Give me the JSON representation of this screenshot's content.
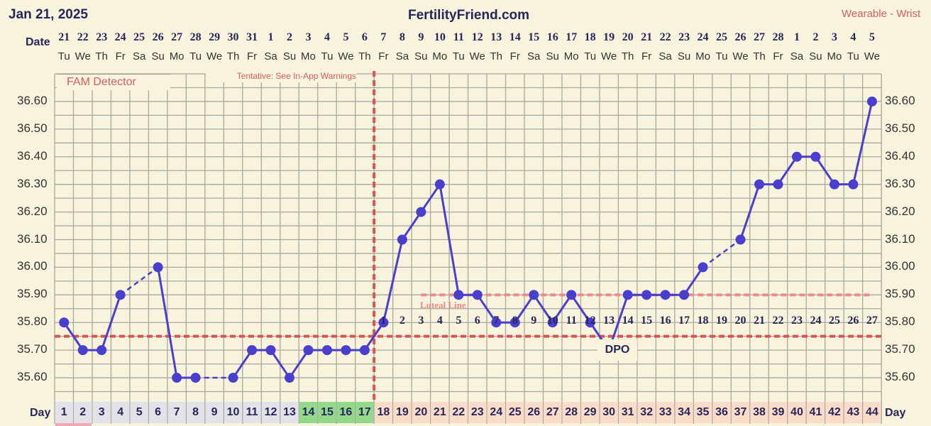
{
  "header": {
    "date": "Jan 21, 2025",
    "site": "FertilityFriend.com",
    "source": "Wearable - Wrist"
  },
  "labels": {
    "date_row": "Date",
    "day_row": "Day",
    "fam": "FAM Detector",
    "tentative": "Tentative: See In-App Warnings",
    "luteal": "Luteal Line",
    "dpo": "DPO"
  },
  "colors": {
    "background": "#f8f3dc",
    "line": "#4a3fcc",
    "coverline": "#d9534f",
    "luteal": "#ef8a8a",
    "fertile": "#93d98a",
    "luteal_phase": "#fbdcc8",
    "follicular": "#e2e2e8"
  },
  "chart_data": {
    "type": "line",
    "dates": [
      "21",
      "22",
      "23",
      "24",
      "25",
      "26",
      "27",
      "28",
      "29",
      "30",
      "31",
      "1",
      "2",
      "3",
      "4",
      "5",
      "6",
      "7",
      "8",
      "9",
      "10",
      "11",
      "12",
      "13",
      "14",
      "15",
      "16",
      "17",
      "18",
      "19",
      "20",
      "21",
      "22",
      "23",
      "24",
      "25",
      "26",
      "27",
      "28",
      "1",
      "2",
      "3",
      "4",
      "5"
    ],
    "weekdays": [
      "Tu",
      "We",
      "Th",
      "Fr",
      "Sa",
      "Su",
      "Mo",
      "Tu",
      "We",
      "Th",
      "Fr",
      "Sa",
      "Su",
      "Mo",
      "Tu",
      "We",
      "Th",
      "Fr",
      "Sa",
      "Su",
      "Mo",
      "Tu",
      "We",
      "Th",
      "Fr",
      "Sa",
      "Su",
      "Mo",
      "Tu",
      "We",
      "Th",
      "Fr",
      "Sa",
      "Su",
      "Mo",
      "Tu",
      "We",
      "Th",
      "Fr",
      "Sa",
      "Su",
      "Mo",
      "Tu",
      "We"
    ],
    "days": [
      1,
      2,
      3,
      4,
      5,
      6,
      7,
      8,
      9,
      10,
      11,
      12,
      13,
      14,
      15,
      16,
      17,
      18,
      19,
      20,
      21,
      22,
      23,
      24,
      25,
      26,
      27,
      28,
      29,
      30,
      31,
      32,
      33,
      34,
      35,
      36,
      37,
      38,
      39,
      40,
      41,
      42,
      43,
      44
    ],
    "temperatures": [
      35.8,
      35.7,
      35.7,
      35.9,
      null,
      36.0,
      35.6,
      35.6,
      null,
      35.6,
      35.7,
      35.7,
      35.6,
      35.7,
      35.7,
      35.7,
      35.7,
      35.8,
      36.1,
      36.2,
      36.3,
      35.9,
      35.9,
      35.8,
      35.8,
      35.9,
      35.8,
      35.9,
      35.8,
      35.7,
      35.9,
      35.9,
      35.9,
      35.9,
      36.0,
      null,
      36.1,
      36.3,
      36.3,
      36.4,
      36.4,
      36.3,
      36.3,
      36.6
    ],
    "y_ticks": [
      "36.60",
      "36.50",
      "36.40",
      "36.30",
      "36.20",
      "36.10",
      "36.00",
      "35.90",
      "35.80",
      "35.70",
      "35.60"
    ],
    "ylim": [
      35.55,
      36.65
    ],
    "coverline": 35.75,
    "luteal_line": 35.9,
    "luteal_line_start_day": 20,
    "ovulation_day": 17,
    "fertile_days": [
      14,
      15,
      16,
      17
    ],
    "dpo": [
      1,
      2,
      3,
      4,
      5,
      6,
      7,
      8,
      9,
      10,
      11,
      12,
      13,
      14,
      15,
      16,
      17,
      18,
      19,
      20,
      21,
      22,
      23,
      24,
      25,
      26,
      27
    ],
    "dpo_start_day": 18,
    "grid": true
  }
}
